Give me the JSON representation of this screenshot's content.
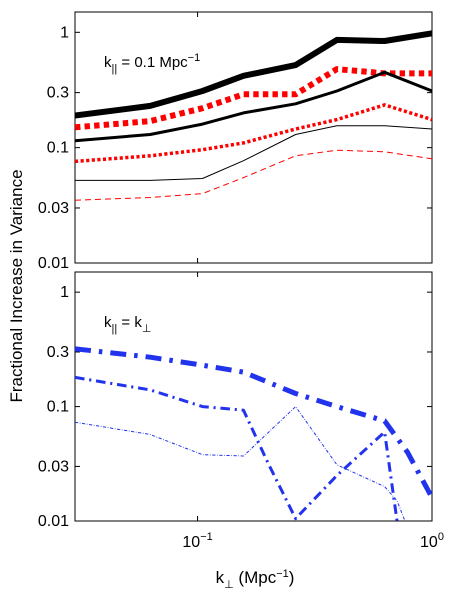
{
  "chart_data": [
    {
      "type": "line",
      "panel": "top",
      "annotation": {
        "k": "k",
        "sub": "||",
        "mid": " = 0.1 Mpc",
        "sup": "−1"
      },
      "ylabel": "Fractional Increase in Variance",
      "xscale": "log",
      "yscale": "log",
      "xlim": [
        0.03,
        1
      ],
      "ylim": [
        0.01,
        1.5
      ],
      "yticks": [
        0.01,
        0.03,
        0.1,
        0.3,
        1
      ],
      "ytick_labels": [
        "0.01",
        "0.03",
        "0.1",
        "0.3",
        "1"
      ],
      "x": [
        0.03,
        0.0628,
        0.105,
        0.157,
        0.262,
        0.393,
        0.628,
        1.0
      ],
      "series": [
        {
          "color": "#000000",
          "dash": "solid",
          "width": 6,
          "values": [
            0.19,
            0.23,
            0.31,
            0.42,
            0.52,
            0.86,
            0.84,
            0.98
          ]
        },
        {
          "color": "#ff0000",
          "dash": "dotted",
          "width": 6,
          "values": [
            0.15,
            0.17,
            0.22,
            0.29,
            0.29,
            0.48,
            0.44,
            0.44
          ]
        },
        {
          "color": "#000000",
          "dash": "solid",
          "width": 3,
          "values": [
            0.115,
            0.13,
            0.16,
            0.2,
            0.24,
            0.31,
            0.45,
            0.31
          ]
        },
        {
          "color": "#ff0000",
          "dash": "dotted",
          "width": 3.5,
          "values": [
            0.076,
            0.085,
            0.096,
            0.11,
            0.145,
            0.175,
            0.235,
            0.175
          ]
        },
        {
          "color": "#000000",
          "dash": "solid",
          "width": 1,
          "values": [
            0.052,
            0.052,
            0.054,
            0.077,
            0.13,
            0.155,
            0.155,
            0.145
          ]
        },
        {
          "color": "#ff0000",
          "dash": "dashed",
          "width": 1,
          "values": [
            0.035,
            0.037,
            0.04,
            0.055,
            0.085,
            0.095,
            0.092,
            0.08
          ]
        }
      ]
    },
    {
      "type": "line",
      "panel": "bottom",
      "annotation": {
        "k": "k",
        "sub": "||",
        "mid": " = k",
        "sub2": "⊥"
      },
      "xlabel": "k⊥ (Mpc−1)",
      "xscale": "log",
      "yscale": "log",
      "xlim": [
        0.03,
        1
      ],
      "ylim": [
        0.01,
        1.5
      ],
      "yticks": [
        0.01,
        0.03,
        0.1,
        0.3,
        1
      ],
      "ytick_labels": [
        "0.01",
        "0.03",
        "0.1",
        "0.3",
        "1"
      ],
      "xticks": [
        0.1,
        1
      ],
      "xtick_labels": [
        {
          "base": "10",
          "exp": "−1"
        },
        {
          "base": "10",
          "exp": "0"
        }
      ],
      "series": [
        {
          "color": "#2233ee",
          "dash": "dashdot",
          "width": 5,
          "x": [
            0.03,
            0.0628,
            0.105,
            0.157,
            0.262,
            0.393,
            0.628,
            0.785,
            1.0
          ],
          "values": [
            0.32,
            0.27,
            0.23,
            0.2,
            0.13,
            0.1,
            0.075,
            0.04,
            0.016
          ]
        },
        {
          "color": "#2233ee",
          "dash": "dashdot",
          "width": 3,
          "x": [
            0.03,
            0.0628,
            0.105,
            0.157,
            0.2,
            0.262,
            0.393,
            0.628,
            0.72
          ],
          "values": [
            0.18,
            0.14,
            0.1,
            0.093,
            0.032,
            0.0105,
            0.025,
            0.06,
            0.008
          ]
        },
        {
          "color": "#2233ee",
          "dash": "dashdot",
          "width": 1,
          "x": [
            0.03,
            0.0628,
            0.105,
            0.157,
            0.262,
            0.393,
            0.628,
            0.71,
            0.8
          ],
          "values": [
            0.073,
            0.057,
            0.038,
            0.037,
            0.1,
            0.031,
            0.02,
            0.015,
            0.008
          ]
        }
      ]
    }
  ]
}
